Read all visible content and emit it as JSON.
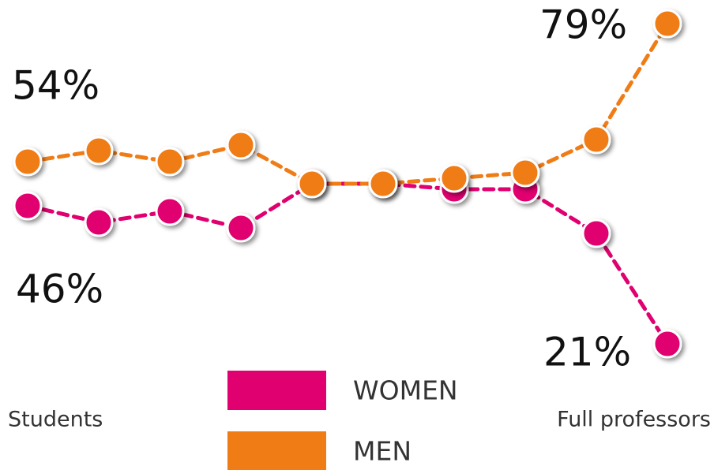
{
  "chart_data": {
    "type": "line",
    "categories": [
      "Students",
      null,
      null,
      null,
      null,
      null,
      null,
      null,
      null,
      "Full professors"
    ],
    "series": [
      {
        "name": "WOMEN",
        "color": "#e0006f",
        "values": [
          46,
          43,
          45,
          42,
          50,
          50,
          49,
          49,
          41,
          21
        ]
      },
      {
        "name": "MEN",
        "color": "#f07c16",
        "values": [
          54,
          56,
          54,
          57,
          50,
          50,
          51,
          52,
          58,
          79
        ]
      }
    ],
    "ylim": [
      0,
      80
    ],
    "annotations": [
      "54%",
      "46%",
      "79%",
      "21%"
    ],
    "grid": false,
    "line_style": "dashed"
  }
}
